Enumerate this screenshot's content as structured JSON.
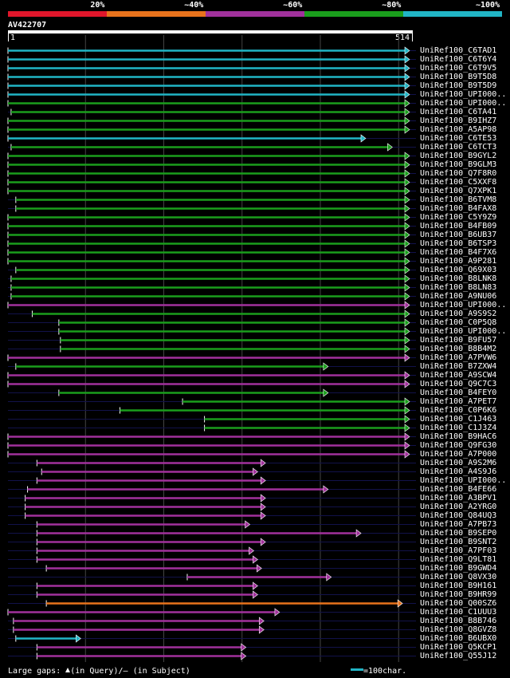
{
  "legend": {
    "labels": [
      "20%",
      "~40%",
      "~60%",
      "~80%",
      "~100%"
    ],
    "colors": [
      "#e0162b",
      "#e8731c",
      "#a1319c",
      "#1a9e1c",
      "#21b5c6"
    ]
  },
  "query": {
    "name": "AV422707",
    "start_label": "1",
    "end_label": "514",
    "length": 514
  },
  "hits": [
    {
      "name": "UniRef100_C6TAD1",
      "start": 1,
      "end": 514,
      "identity_color": "#21b5c6"
    },
    {
      "name": "UniRef100_C6T6Y4",
      "start": 1,
      "end": 514,
      "identity_color": "#21b5c6"
    },
    {
      "name": "UniRef100_C6T9V5",
      "start": 1,
      "end": 514,
      "identity_color": "#21b5c6"
    },
    {
      "name": "UniRef100_B9T5D8",
      "start": 1,
      "end": 514,
      "identity_color": "#21b5c6"
    },
    {
      "name": "UniRef100_B9T5D9",
      "start": 1,
      "end": 514,
      "identity_color": "#21b5c6"
    },
    {
      "name": "UniRef100_UPI000..",
      "start": 1,
      "end": 514,
      "identity_color": "#21b5c6"
    },
    {
      "name": "UniRef100_UPI000..",
      "start": 1,
      "end": 514,
      "identity_color": "#1a9e1c"
    },
    {
      "name": "UniRef100_C6TA41",
      "start": 5,
      "end": 514,
      "identity_color": "#1a9e1c"
    },
    {
      "name": "UniRef100_B9IHZ7",
      "start": 1,
      "end": 514,
      "identity_color": "#1a9e1c"
    },
    {
      "name": "UniRef100_A5AP98",
      "start": 1,
      "end": 514,
      "identity_color": "#1a9e1c"
    },
    {
      "name": "UniRef100_C6TE53",
      "start": 1,
      "end": 458,
      "identity_color": "#21b5c6"
    },
    {
      "name": "UniRef100_C6TCT3",
      "start": 5,
      "end": 492,
      "identity_color": "#1a9e1c"
    },
    {
      "name": "UniRef100_B9GYL2",
      "start": 1,
      "end": 514,
      "identity_color": "#1a9e1c"
    },
    {
      "name": "UniRef100_B9GLM3",
      "start": 1,
      "end": 514,
      "identity_color": "#1a9e1c"
    },
    {
      "name": "UniRef100_Q7F8R0",
      "start": 1,
      "end": 514,
      "identity_color": "#1a9e1c"
    },
    {
      "name": "UniRef100_C5XXF8",
      "start": 1,
      "end": 514,
      "identity_color": "#1a9e1c"
    },
    {
      "name": "UniRef100_Q7XPK1",
      "start": 1,
      "end": 514,
      "identity_color": "#1a9e1c"
    },
    {
      "name": "UniRef100_B6TVM8",
      "start": 11,
      "end": 514,
      "identity_color": "#1a9e1c"
    },
    {
      "name": "UniRef100_B4FAX8",
      "start": 11,
      "end": 514,
      "identity_color": "#1a9e1c"
    },
    {
      "name": "UniRef100_C5Y9Z9",
      "start": 1,
      "end": 514,
      "identity_color": "#1a9e1c"
    },
    {
      "name": "UniRef100_B4FB09",
      "start": 1,
      "end": 514,
      "identity_color": "#1a9e1c"
    },
    {
      "name": "UniRef100_B6UB37",
      "start": 1,
      "end": 514,
      "identity_color": "#1a9e1c"
    },
    {
      "name": "UniRef100_B6TSP3",
      "start": 1,
      "end": 514,
      "identity_color": "#1a9e1c"
    },
    {
      "name": "UniRef100_B4F7X6",
      "start": 1,
      "end": 514,
      "identity_color": "#1a9e1c"
    },
    {
      "name": "UniRef100_A9P281",
      "start": 1,
      "end": 514,
      "identity_color": "#1a9e1c"
    },
    {
      "name": "UniRef100_Q69X03",
      "start": 11,
      "end": 514,
      "identity_color": "#1a9e1c"
    },
    {
      "name": "UniRef100_B8LNK8",
      "start": 5,
      "end": 514,
      "identity_color": "#1a9e1c"
    },
    {
      "name": "UniRef100_B8LN83",
      "start": 5,
      "end": 514,
      "identity_color": "#1a9e1c"
    },
    {
      "name": "UniRef100_A9NU06",
      "start": 5,
      "end": 514,
      "identity_color": "#1a9e1c"
    },
    {
      "name": "UniRef100_UPI000..",
      "start": 1,
      "end": 514,
      "identity_color": "#a1319c"
    },
    {
      "name": "UniRef100_A9S9S2",
      "start": 32,
      "end": 514,
      "identity_color": "#1a9e1c"
    },
    {
      "name": "UniRef100_C0P5Q8",
      "start": 66,
      "end": 514,
      "identity_color": "#1a9e1c"
    },
    {
      "name": "UniRef100_UPI000..",
      "start": 66,
      "end": 514,
      "identity_color": "#1a9e1c"
    },
    {
      "name": "UniRef100_B9FU57",
      "start": 68,
      "end": 514,
      "identity_color": "#1a9e1c"
    },
    {
      "name": "UniRef100_B8B4M2",
      "start": 68,
      "end": 514,
      "identity_color": "#1a9e1c"
    },
    {
      "name": "UniRef100_A7PVW6",
      "start": 1,
      "end": 514,
      "identity_color": "#a1319c"
    },
    {
      "name": "UniRef100_B7ZXW4",
      "start": 11,
      "end": 410,
      "identity_color": "#1a9e1c"
    },
    {
      "name": "UniRef100_A9SCW4",
      "start": 1,
      "end": 514,
      "identity_color": "#a1319c"
    },
    {
      "name": "UniRef100_Q9C7C3",
      "start": 1,
      "end": 514,
      "identity_color": "#a1319c"
    },
    {
      "name": "UniRef100_B4FEY0",
      "start": 66,
      "end": 410,
      "identity_color": "#1a9e1c"
    },
    {
      "name": "UniRef100_A7PET7",
      "start": 224,
      "end": 514,
      "identity_color": "#1a9e1c"
    },
    {
      "name": "UniRef100_C0P6K6",
      "start": 144,
      "end": 514,
      "identity_color": "#1a9e1c"
    },
    {
      "name": "UniRef100_C1J463",
      "start": 252,
      "end": 514,
      "identity_color": "#1a9e1c"
    },
    {
      "name": "UniRef100_C1J3Z4",
      "start": 252,
      "end": 514,
      "identity_color": "#1a9e1c"
    },
    {
      "name": "UniRef100_B9HAC6",
      "start": 1,
      "end": 514,
      "identity_color": "#a1319c"
    },
    {
      "name": "UniRef100_Q9FG30",
      "start": 1,
      "end": 514,
      "identity_color": "#a1319c"
    },
    {
      "name": "UniRef100_A7P000",
      "start": 1,
      "end": 514,
      "identity_color": "#a1319c"
    },
    {
      "name": "UniRef100_A9S2M6",
      "start": 38,
      "end": 330,
      "identity_color": "#a1319c"
    },
    {
      "name": "UniRef100_A4S9J6",
      "start": 44,
      "end": 320,
      "identity_color": "#a1319c"
    },
    {
      "name": "UniRef100_UPI000..",
      "start": 38,
      "end": 330,
      "identity_color": "#a1319c"
    },
    {
      "name": "UniRef100_B4FE66",
      "start": 26,
      "end": 410,
      "identity_color": "#a1319c"
    },
    {
      "name": "UniRef100_A3BPV1",
      "start": 23,
      "end": 330,
      "identity_color": "#a1319c"
    },
    {
      "name": "UniRef100_A2YRG0",
      "start": 23,
      "end": 330,
      "identity_color": "#a1319c"
    },
    {
      "name": "UniRef100_Q84UQ3",
      "start": 23,
      "end": 330,
      "identity_color": "#a1319c"
    },
    {
      "name": "UniRef100_A7PB73",
      "start": 38,
      "end": 310,
      "identity_color": "#a1319c"
    },
    {
      "name": "UniRef100_B9SEP0",
      "start": 38,
      "end": 452,
      "identity_color": "#a1319c"
    },
    {
      "name": "UniRef100_B9SNT2",
      "start": 38,
      "end": 330,
      "identity_color": "#a1319c"
    },
    {
      "name": "UniRef100_A7PF03",
      "start": 38,
      "end": 315,
      "identity_color": "#a1319c"
    },
    {
      "name": "UniRef100_Q9LT81",
      "start": 38,
      "end": 320,
      "identity_color": "#a1319c"
    },
    {
      "name": "UniRef100_B9GWD4",
      "start": 50,
      "end": 325,
      "identity_color": "#a1319c"
    },
    {
      "name": "UniRef100_Q8VX30",
      "start": 230,
      "end": 414,
      "identity_color": "#a1319c"
    },
    {
      "name": "UniRef100_B9H161",
      "start": 38,
      "end": 320,
      "identity_color": "#a1319c"
    },
    {
      "name": "UniRef100_B9HR99",
      "start": 38,
      "end": 320,
      "identity_color": "#a1319c"
    },
    {
      "name": "UniRef100_Q00SZ6",
      "start": 50,
      "end": 505,
      "identity_color": "#e8731c"
    },
    {
      "name": "UniRef100_C1UUU3",
      "start": 1,
      "end": 348,
      "identity_color": "#a1319c"
    },
    {
      "name": "UniRef100_B8B746",
      "start": 8,
      "end": 328,
      "identity_color": "#a1319c"
    },
    {
      "name": "UniRef100_Q8GVZ8",
      "start": 8,
      "end": 328,
      "identity_color": "#a1319c"
    },
    {
      "name": "UniRef100_B6UBX0",
      "start": 11,
      "end": 94,
      "identity_color": "#21b5c6"
    },
    {
      "name": "UniRef100_Q5KCP1",
      "start": 38,
      "end": 305,
      "identity_color": "#a1319c"
    },
    {
      "name": "UniRef100_Q55J12",
      "start": 38,
      "end": 305,
      "identity_color": "#a1319c"
    }
  ],
  "footer": {
    "gaps_label": "Large gaps:",
    "in_query_label": "(in Query)/",
    "dash_glyph": "–",
    "in_subject_label": "(in Subject)",
    "scale_label": "=100char."
  }
}
